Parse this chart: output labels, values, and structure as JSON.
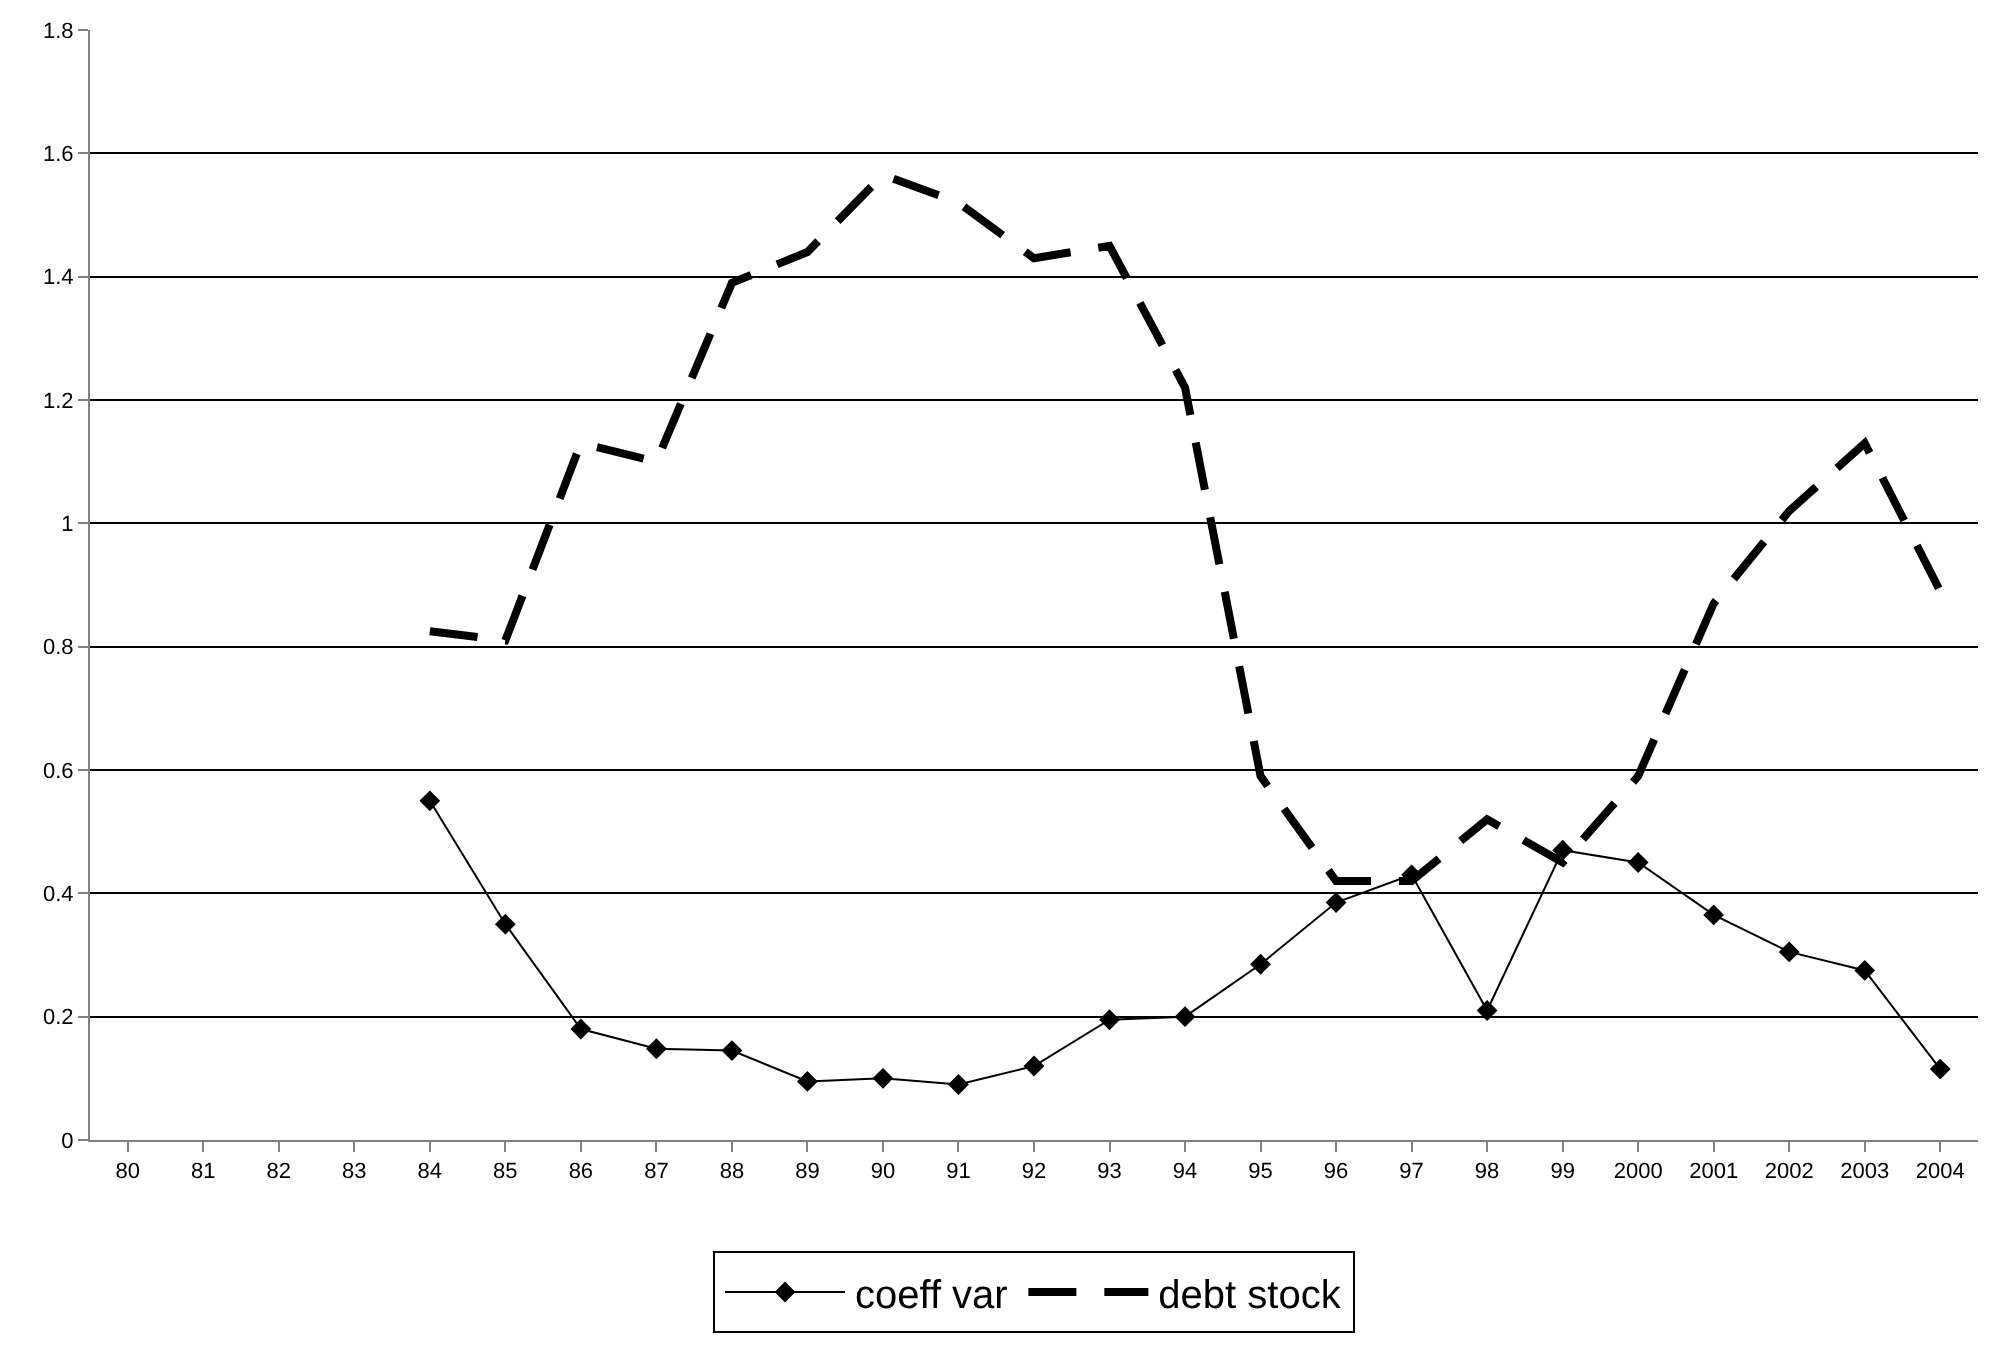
{
  "chart_data": {
    "type": "line",
    "categories": [
      "80",
      "81",
      "82",
      "83",
      "84",
      "85",
      "86",
      "87",
      "88",
      "89",
      "90",
      "91",
      "92",
      "93",
      "94",
      "95",
      "96",
      "97",
      "98",
      "99",
      "2000",
      "2001",
      "2002",
      "2003",
      "2004"
    ],
    "series": [
      {
        "name": "coeff var",
        "color": "#000000",
        "marker": "diamond",
        "line_style": "solid",
        "values": [
          null,
          null,
          null,
          null,
          0.55,
          0.35,
          0.18,
          0.148,
          0.145,
          0.095,
          0.1,
          0.09,
          0.12,
          0.195,
          0.2,
          0.285,
          0.385,
          0.43,
          0.21,
          0.47,
          0.45,
          0.365,
          0.305,
          0.275,
          0.115
        ]
      },
      {
        "name": "debt stock",
        "color": "#000000",
        "marker": "none",
        "line_style": "dashed",
        "values": [
          null,
          null,
          null,
          null,
          0.825,
          0.81,
          1.13,
          1.1,
          1.39,
          1.44,
          1.565,
          1.52,
          1.43,
          1.45,
          1.22,
          0.59,
          0.42,
          0.42,
          0.52,
          0.45,
          0.59,
          0.87,
          1.02,
          1.13,
          0.89
        ]
      }
    ],
    "ylim": [
      0,
      1.8
    ],
    "yticks": [
      0,
      0.2,
      0.4,
      0.6,
      0.8,
      1,
      1.2,
      1.4,
      1.6,
      1.8
    ],
    "grid": "y",
    "legend": "bottom"
  }
}
